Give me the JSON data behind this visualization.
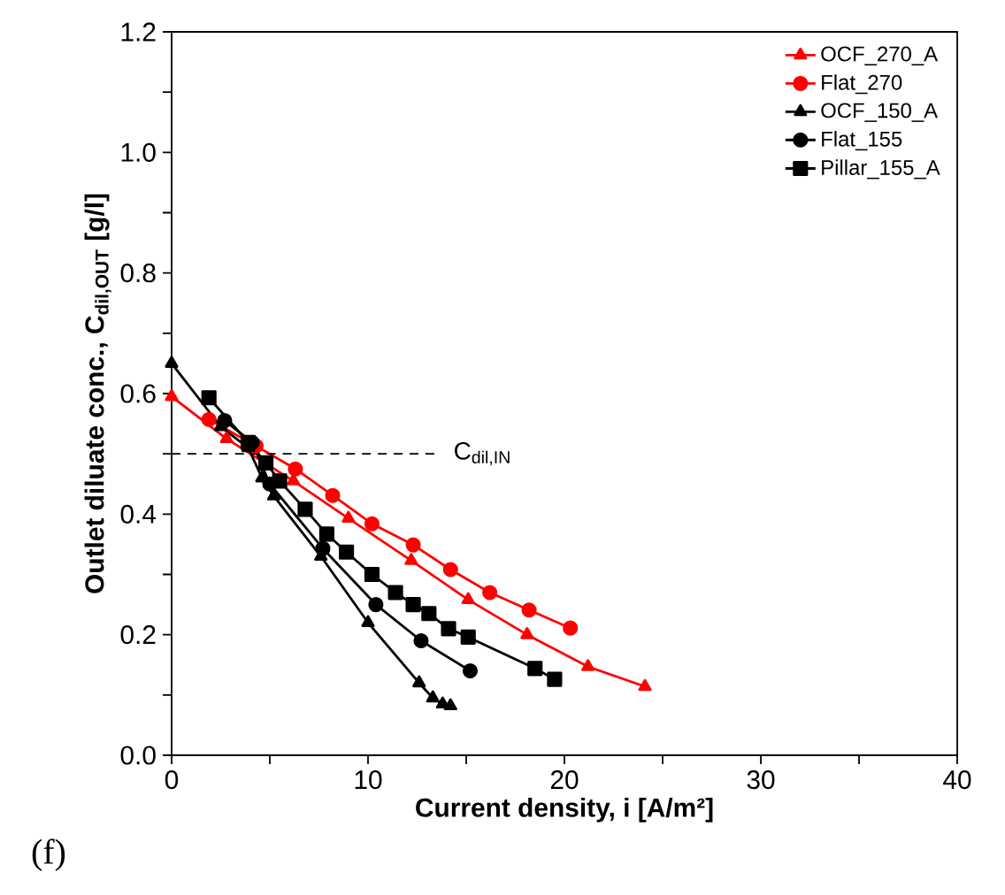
{
  "chart_data": {
    "type": "line",
    "xlabel": "Current density, i [A/m²]",
    "ylabel": "Outlet diluate conc., C$_{dil,OUT}$ [g/l]",
    "xlim": [
      0,
      40
    ],
    "ylim": [
      0,
      1.2
    ],
    "xticks": [
      0,
      {
        "value": 5,
        "label": null
      },
      10,
      {
        "value": 15,
        "label": null
      },
      20,
      {
        "value": 25,
        "label": null
      },
      30,
      {
        "value": 35,
        "label": null
      },
      40
    ],
    "yticks": [
      {
        "value": 0,
        "label": "0.0"
      },
      {
        "value": 0.1,
        "label": null
      },
      {
        "value": 0.2,
        "label": "0.2"
      },
      {
        "value": 0.3,
        "label": null
      },
      {
        "value": 0.4,
        "label": "0.4"
      },
      {
        "value": 0.5,
        "label": null
      },
      {
        "value": 0.6,
        "label": "0.6"
      },
      {
        "value": 0.7,
        "label": null
      },
      {
        "value": 0.8,
        "label": "0.8"
      },
      {
        "value": 0.9,
        "label": null
      },
      {
        "value": 1.0,
        "label": "1.0"
      },
      {
        "value": 1.1,
        "label": null
      },
      {
        "value": 1.2,
        "label": "1.2"
      }
    ],
    "grid": false,
    "legend": "top right",
    "ref_lines": [
      {
        "axis": "y",
        "value": 0.5,
        "label": "C$_{dil,IN}$",
        "color": "#000000",
        "line_style": "dashed"
      }
    ],
    "annotations": [
      "(f)"
    ],
    "series": [
      {
        "name": "OCF_270_A",
        "color": "#ff0000",
        "marker": "triangle",
        "x": [
          0,
          2.8,
          6.2,
          9,
          12.2,
          15.1,
          18.1,
          21.2,
          24.1
        ],
        "values": [
          0.595,
          0.525,
          0.455,
          0.393,
          0.323,
          0.258,
          0.2,
          0.147,
          0.114
        ]
      },
      {
        "name": "Flat_270",
        "color": "#ff0000",
        "marker": "circle",
        "x": [
          1.9,
          4.3,
          6.3,
          8.2,
          10.2,
          12.3,
          14.2,
          16.2,
          18.2,
          20.3
        ],
        "values": [
          0.557,
          0.513,
          0.475,
          0.431,
          0.384,
          0.349,
          0.308,
          0.27,
          0.241,
          0.211
        ]
      },
      {
        "name": "OCF_150_A",
        "color": "#000000",
        "marker": "triangle",
        "x": [
          0,
          2.5,
          3.9,
          4.6,
          5.2,
          7.6,
          10,
          12.6,
          13.3,
          13.8,
          14.2
        ],
        "values": [
          0.65,
          0.545,
          0.51,
          0.46,
          0.43,
          0.33,
          0.22,
          0.12,
          0.095,
          0.085,
          0.082
        ]
      },
      {
        "name": "Flat_155",
        "color": "#000000",
        "marker": "circle",
        "x": [
          2.7,
          4.1,
          5,
          7.7,
          10.4,
          12.7,
          15.2
        ],
        "values": [
          0.555,
          0.519,
          0.45,
          0.343,
          0.25,
          0.19,
          0.14
        ]
      },
      {
        "name": "Pillar_155_A",
        "color": "#000000",
        "marker": "square",
        "x": [
          1.9,
          3.9,
          4.8,
          5.5,
          6.8,
          7.9,
          8.9,
          10.2,
          11.4,
          12.3,
          13.1,
          14.1,
          15.1,
          18.5,
          19.5
        ],
        "values": [
          0.593,
          0.519,
          0.485,
          0.455,
          0.408,
          0.367,
          0.337,
          0.3,
          0.27,
          0.25,
          0.235,
          0.21,
          0.196,
          0.144,
          0.126
        ]
      }
    ]
  }
}
